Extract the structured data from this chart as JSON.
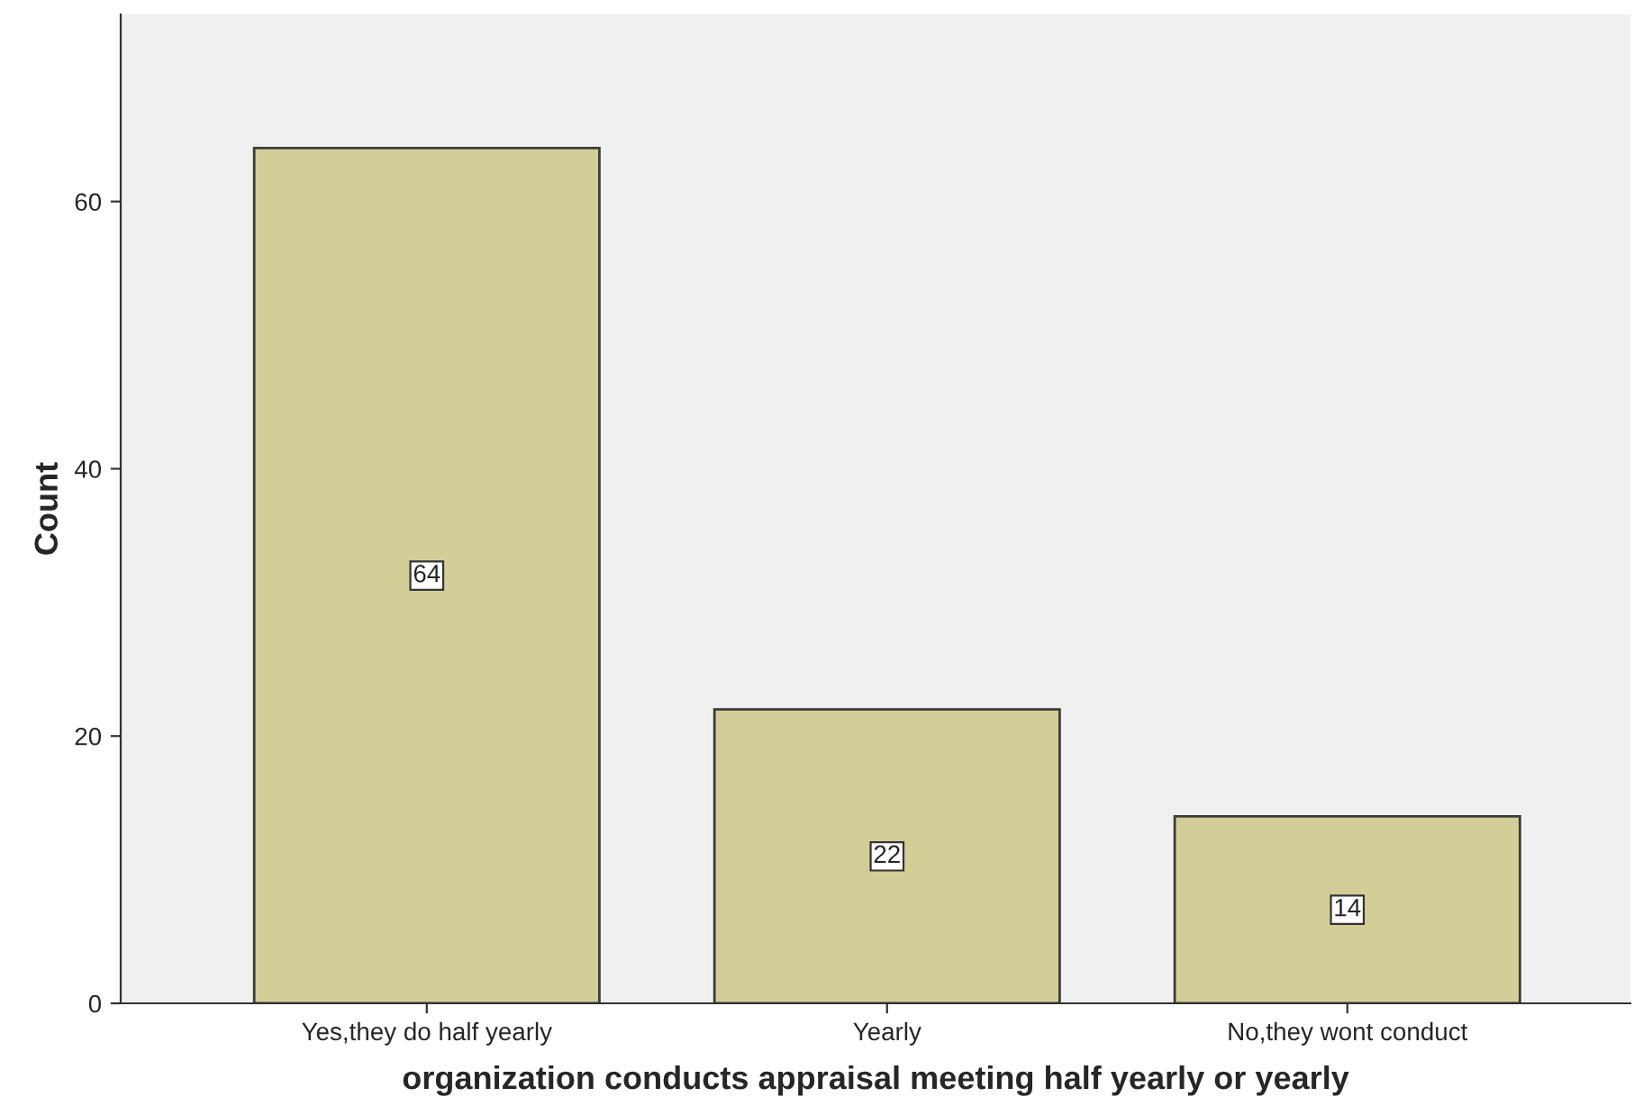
{
  "chart_data": {
    "type": "bar",
    "xlabel": "organization conducts appraisal meeting half yearly or yearly",
    "ylabel": "Count",
    "categories": [
      "Yes,they do half yearly",
      "Yearly",
      "No,they wont conduct"
    ],
    "values": [
      64,
      22,
      14
    ],
    "color": "#d3ce97",
    "ylim": [
      0,
      74
    ],
    "yticks": [
      0,
      20,
      40,
      60
    ],
    "grid": false,
    "data_labels": true
  }
}
